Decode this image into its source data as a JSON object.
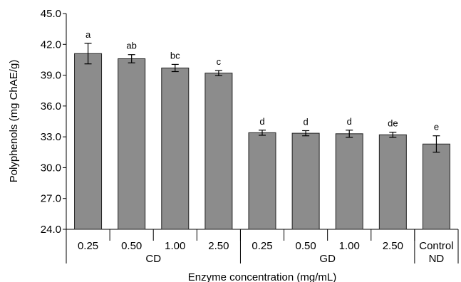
{
  "chart_data": {
    "type": "bar",
    "ylabel": "Polyphenols (mg ChAE/g)",
    "xlabel": "Enzyme concentration (mg/mL)",
    "ylim": [
      24.0,
      45.0
    ],
    "yticks": [
      "24.0",
      "27.0",
      "30.0",
      "33.0",
      "36.0",
      "39.0",
      "42.0",
      "45.0"
    ],
    "categories": [
      "0.25",
      "0.50",
      "1.00",
      "2.50",
      "0.25",
      "0.50",
      "1.00",
      "2.50",
      "Control"
    ],
    "groups": [
      {
        "label": "CD",
        "count": 4
      },
      {
        "label": "GD",
        "count": 4
      },
      {
        "label": "ND",
        "count": 1
      }
    ],
    "values": [
      41.1,
      40.6,
      39.7,
      39.2,
      33.4,
      33.35,
      33.3,
      33.2,
      32.3
    ],
    "errors": [
      1.0,
      0.4,
      0.35,
      0.25,
      0.25,
      0.25,
      0.35,
      0.25,
      0.8
    ],
    "significance": [
      "a",
      "ab",
      "bc",
      "c",
      "d",
      "d",
      "d",
      "de",
      "e"
    ],
    "bar_color": "#8c8c8c",
    "grid": false
  }
}
